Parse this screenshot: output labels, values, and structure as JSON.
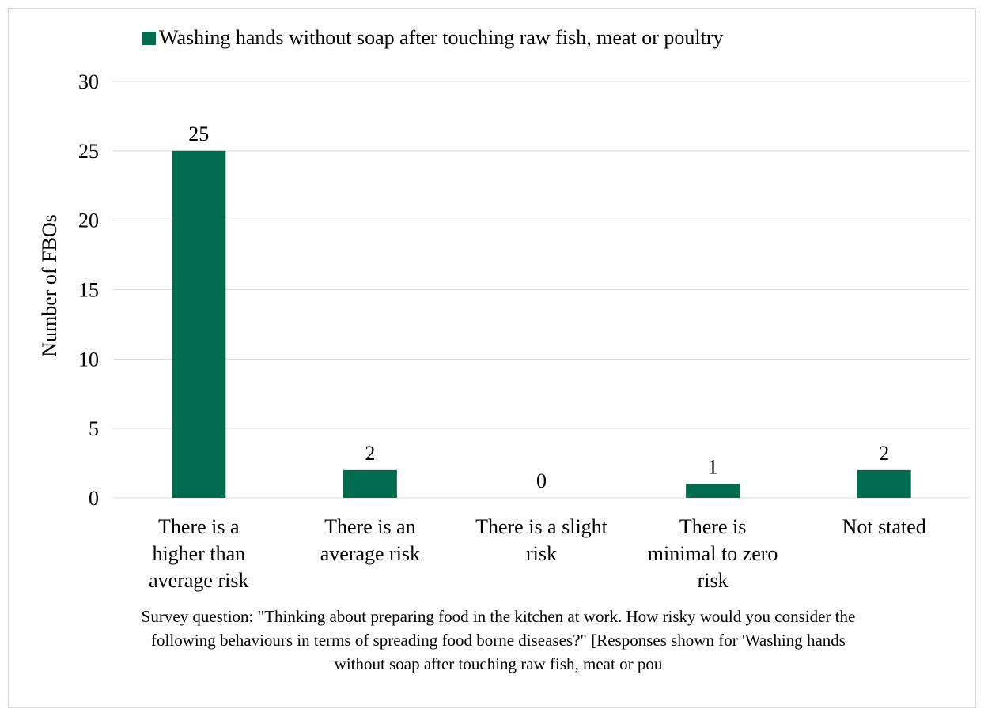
{
  "chart_data": {
    "type": "bar",
    "categories": [
      "There is a higher than average risk",
      "There is an average risk",
      "There is a slight risk",
      "There is minimal to zero risk",
      "Not stated"
    ],
    "category_lines": [
      [
        "There is a",
        "higher than",
        "average risk"
      ],
      [
        "There is an",
        "average risk"
      ],
      [
        "There is a slight",
        "risk"
      ],
      [
        "There is",
        "minimal to zero",
        "risk"
      ],
      [
        "Not stated"
      ]
    ],
    "series": [
      {
        "name": "Washing hands without soap after touching raw fish, meat or poultry",
        "values": [
          25,
          2,
          0,
          1,
          2
        ],
        "color": "#006b4f"
      }
    ],
    "data_labels": [
      "25",
      "2",
      "0",
      "1",
      "2"
    ],
    "ylabel": "Number of FBOs",
    "ylim": [
      0,
      30
    ],
    "yticks": [
      0,
      5,
      10,
      15,
      20,
      25,
      30
    ],
    "grid": true,
    "legend_position": "top"
  },
  "note": "Survey question: \"Thinking about preparing food in the kitchen at work. How risky would you consider the following behaviours in terms of spreading food borne diseases?\" [Responses shown for 'Washing hands without soap after touching raw fish, meat or pou",
  "colors": {
    "bar": "#006b4f",
    "grid": "#d9d9d9",
    "frame": "#d9d9d9"
  }
}
